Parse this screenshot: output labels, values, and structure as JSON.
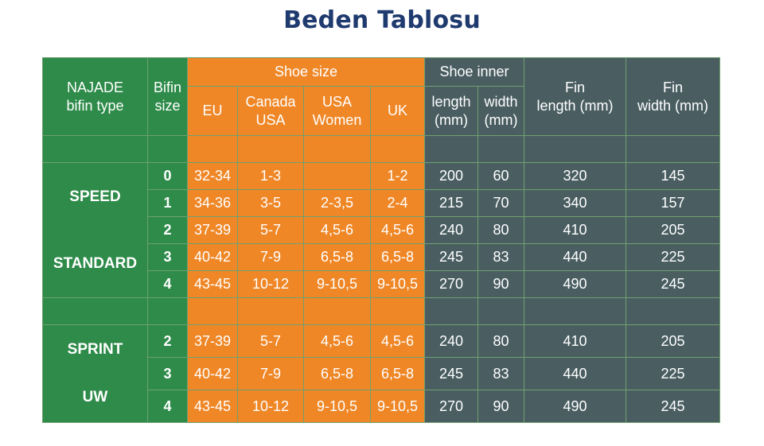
{
  "title": "Beden Tablosu",
  "headers": {
    "type": [
      "NAJADE",
      "bifin type"
    ],
    "bifin_size": [
      "Bifin",
      "size"
    ],
    "shoe_size": "Shoe size",
    "eu": "EU",
    "canada_usa": [
      "Canada",
      "USA"
    ],
    "usa_women": [
      "USA",
      "Women"
    ],
    "uk": "UK",
    "shoe_inner": "Shoe inner",
    "length": [
      "length",
      "(mm)"
    ],
    "width": [
      "width",
      "(mm)"
    ],
    "fin_length": [
      "Fin",
      "length (mm)"
    ],
    "fin_width": [
      "Fin",
      "width (mm)"
    ]
  },
  "groups": [
    {
      "type_lines": [
        "SPEED",
        "STANDARD"
      ],
      "rows": [
        {
          "size": "0",
          "eu": "32-34",
          "canada_usa": "1-3",
          "usa_women": "",
          "uk": "1-2",
          "length": "200",
          "width": "60",
          "fin_length": "320",
          "fin_width": "145"
        },
        {
          "size": "1",
          "eu": "34-36",
          "canada_usa": "3-5",
          "usa_women": "2-3,5",
          "uk": "2-4",
          "length": "215",
          "width": "70",
          "fin_length": "340",
          "fin_width": "157"
        },
        {
          "size": "2",
          "eu": "37-39",
          "canada_usa": "5-7",
          "usa_women": "4,5-6",
          "uk": "4,5-6",
          "length": "240",
          "width": "80",
          "fin_length": "410",
          "fin_width": "205"
        },
        {
          "size": "3",
          "eu": "40-42",
          "canada_usa": "7-9",
          "usa_women": "6,5-8",
          "uk": "6,5-8",
          "length": "245",
          "width": "83",
          "fin_length": "440",
          "fin_width": "225"
        },
        {
          "size": "4",
          "eu": "43-45",
          "canada_usa": "10-12",
          "usa_women": "9-10,5",
          "uk": "9-10,5",
          "length": "270",
          "width": "90",
          "fin_length": "490",
          "fin_width": "245"
        }
      ]
    },
    {
      "type_lines": [
        "SPRINT",
        "UW"
      ],
      "rows": [
        {
          "size": "2",
          "eu": "37-39",
          "canada_usa": "5-7",
          "usa_women": "4,5-6",
          "uk": "4,5-6",
          "length": "240",
          "width": "80",
          "fin_length": "410",
          "fin_width": "205"
        },
        {
          "size": "3",
          "eu": "40-42",
          "canada_usa": "7-9",
          "usa_women": "6,5-8",
          "uk": "6,5-8",
          "length": "245",
          "width": "83",
          "fin_length": "440",
          "fin_width": "225"
        },
        {
          "size": "4",
          "eu": "43-45",
          "canada_usa": "10-12",
          "usa_women": "9-10,5",
          "uk": "9-10,5",
          "length": "270",
          "width": "90",
          "fin_length": "490",
          "fin_width": "245"
        }
      ]
    }
  ]
}
